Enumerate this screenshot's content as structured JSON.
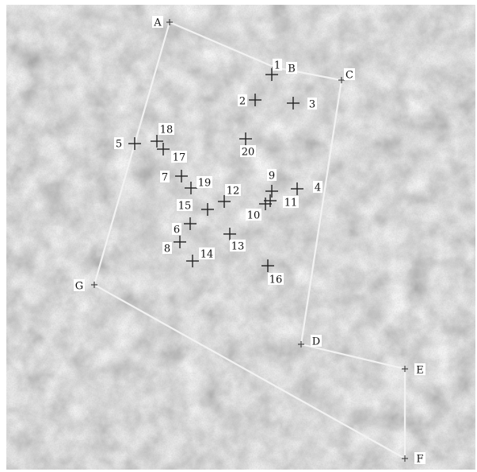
{
  "map": {
    "vertices": [
      {
        "id": "A",
        "label": "A"
      },
      {
        "id": "B",
        "label": "B"
      },
      {
        "id": "C",
        "label": "C"
      },
      {
        "id": "D",
        "label": "D"
      },
      {
        "id": "E",
        "label": "E"
      },
      {
        "id": "F",
        "label": "F"
      },
      {
        "id": "G",
        "label": "G"
      }
    ],
    "sample_points": [
      {
        "id": "1",
        "label": "1"
      },
      {
        "id": "2",
        "label": "2"
      },
      {
        "id": "3",
        "label": "3"
      },
      {
        "id": "4",
        "label": "4"
      },
      {
        "id": "5",
        "label": "5"
      },
      {
        "id": "6",
        "label": "6"
      },
      {
        "id": "7",
        "label": "7"
      },
      {
        "id": "8",
        "label": "8"
      },
      {
        "id": "9",
        "label": "9"
      },
      {
        "id": "10",
        "label": "10"
      },
      {
        "id": "11",
        "label": "11"
      },
      {
        "id": "12",
        "label": "12"
      },
      {
        "id": "13",
        "label": "13"
      },
      {
        "id": "14",
        "label": "14"
      },
      {
        "id": "15",
        "label": "15"
      },
      {
        "id": "16",
        "label": "16"
      },
      {
        "id": "17",
        "label": "17"
      },
      {
        "id": "18",
        "label": "18"
      },
      {
        "id": "19",
        "label": "19"
      },
      {
        "id": "20",
        "label": "20"
      }
    ],
    "colors": {
      "terrain_base": "#b9b9b9",
      "terrain_dark": "#8a8a8a",
      "boundary_line": "#f2f2f2",
      "marker": "#222222"
    }
  }
}
